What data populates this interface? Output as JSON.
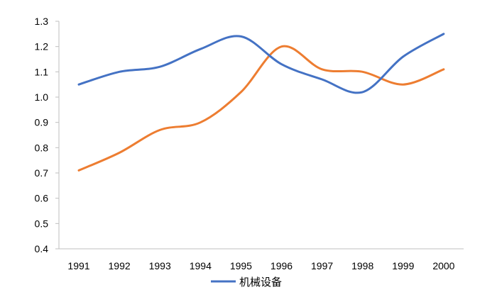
{
  "chart_data": {
    "type": "line",
    "title": "",
    "xlabel": "",
    "ylabel": "",
    "x": [
      "1991",
      "1992",
      "1993",
      "1994",
      "1995",
      "1996",
      "1997",
      "1998",
      "1999",
      "2000"
    ],
    "ylim": [
      0.4,
      1.3
    ],
    "yticks": [
      "0.4",
      "0.5",
      "0.6",
      "0.7",
      "0.8",
      "0.9",
      "1.0",
      "1.1",
      "1.2",
      "1.3"
    ],
    "grid": false,
    "legend_position": "bottom",
    "series": [
      {
        "name": "机械设备",
        "color": "#4472C4",
        "values": [
          1.05,
          1.1,
          1.12,
          1.19,
          1.24,
          1.13,
          1.07,
          1.02,
          1.16,
          1.25
        ]
      },
      {
        "color": "#ED7D31",
        "values": [
          0.71,
          0.78,
          0.87,
          0.9,
          1.02,
          1.2,
          1.11,
          1.1,
          1.05,
          1.11
        ]
      }
    ]
  }
}
